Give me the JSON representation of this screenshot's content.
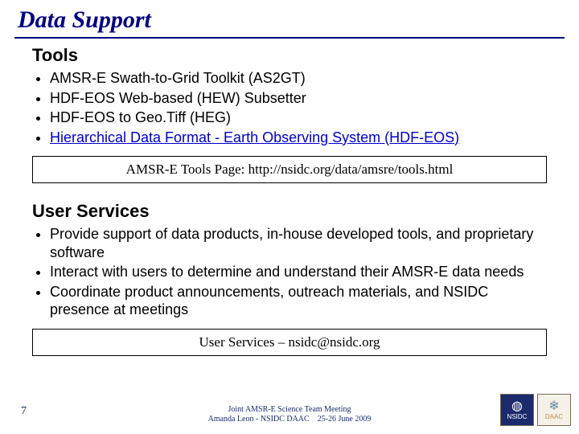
{
  "title": "Data Support",
  "sections": {
    "tools": {
      "heading": "Tools",
      "items": [
        {
          "text": "AMSR-E Swath-to-Grid Toolkit (AS2GT)",
          "link": false
        },
        {
          "text": "HDF-EOS Web-based (HEW) Subsetter",
          "link": false
        },
        {
          "text": "HDF-EOS to Geo.Tiff (HEG)",
          "link": false
        },
        {
          "text": "Hierarchical Data Format - Earth Observing System (HDF-EOS)",
          "link": true
        }
      ],
      "callout": "AMSR-E Tools Page: http://nsidc.org/data/amsre/tools.html"
    },
    "user_services": {
      "heading": "User Services",
      "items": [
        {
          "text": "Provide support of data products, in-house developed tools, and proprietary software"
        },
        {
          "text": "Interact with users to determine and understand their AMSR-E data needs"
        },
        {
          "text": "Coordinate product announcements, outreach materials, and NSIDC presence at meetings"
        }
      ],
      "callout": "User Services – nsidc@nsidc.org"
    }
  },
  "footer": {
    "page_number": "7",
    "line1": "Joint AMSR-E Science Team Meeting",
    "line2": "Amanda Leon - NSIDC DAAC    25-26 June 2009"
  },
  "logos": {
    "nsidc": "NSIDC",
    "daac": "DAAC"
  },
  "colors": {
    "title": "#000080",
    "rule": "#000080",
    "link": "#0000cc",
    "footer_text": "#1a2a6c"
  }
}
